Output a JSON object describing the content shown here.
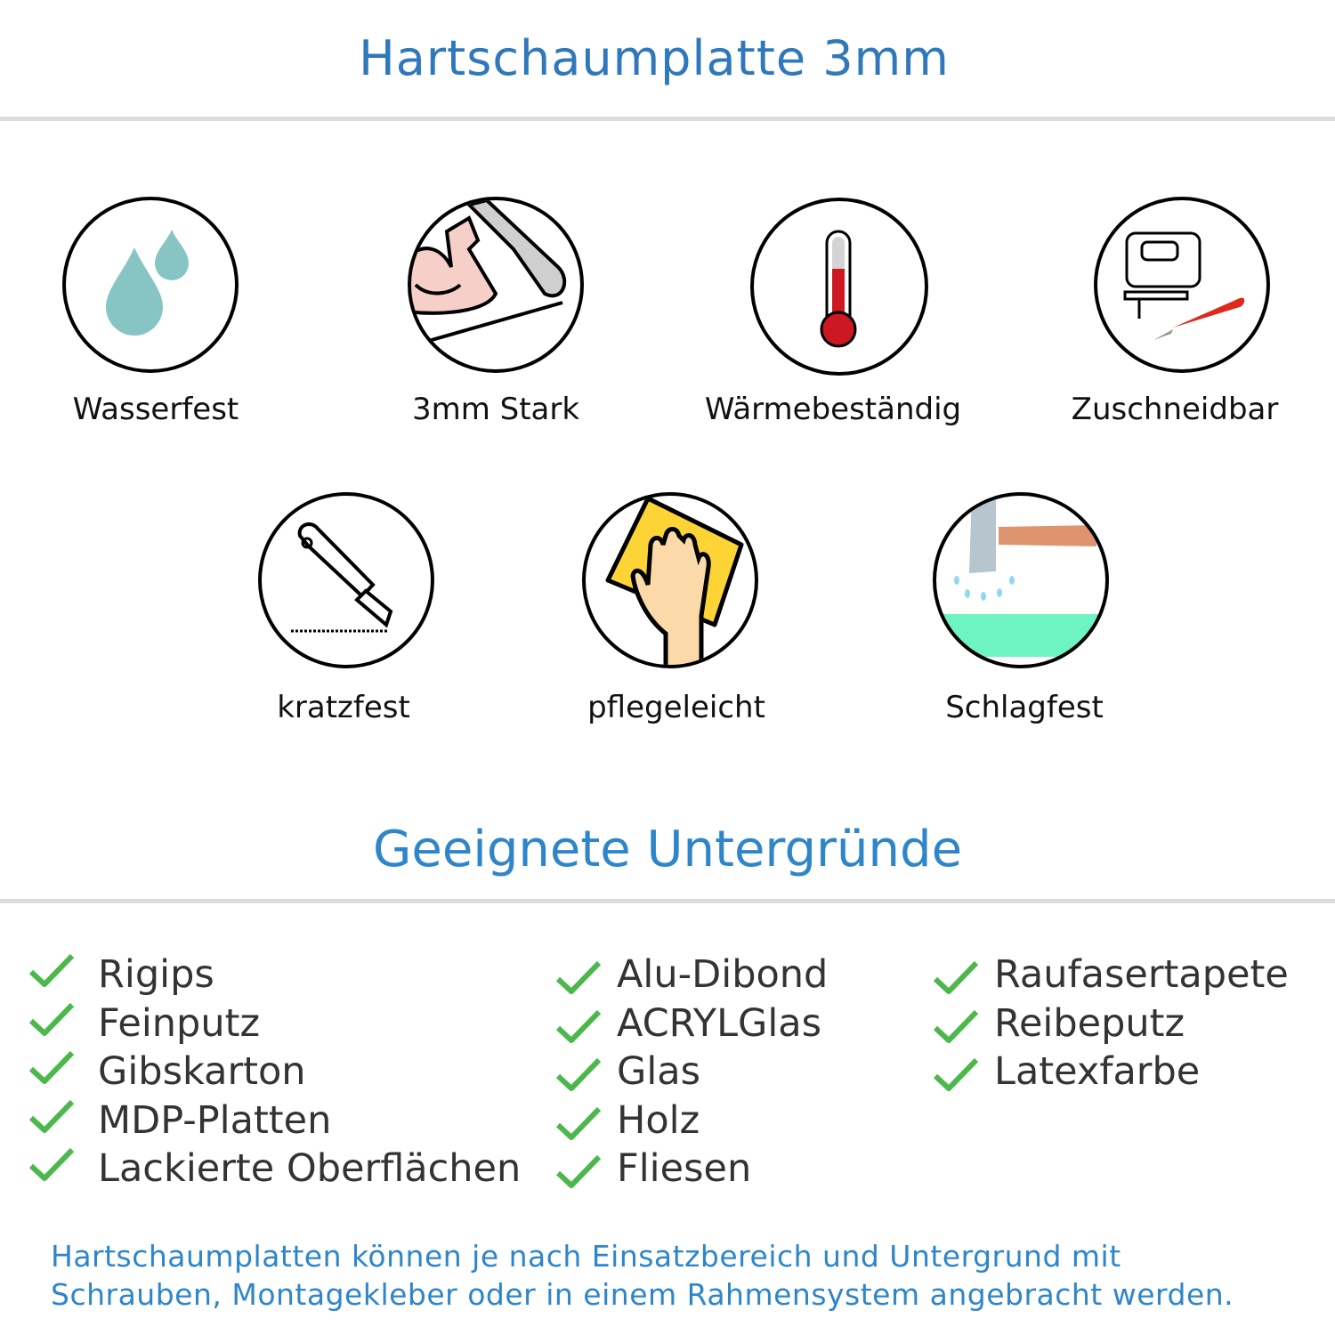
{
  "header": {
    "title": "Hartschaumplatte 3mm"
  },
  "features": [
    {
      "label": "Wasserfest",
      "icon": "water-drops-icon"
    },
    {
      "label": "3mm Stark",
      "icon": "strong-arm-icon"
    },
    {
      "label": "Wärmebeständig",
      "icon": "thermometer-icon"
    },
    {
      "label": "Zuschneidbar",
      "icon": "jigsaw-knife-icon"
    },
    {
      "label": "kratzfest",
      "icon": "cutter-knife-icon"
    },
    {
      "label": "pflegeleicht",
      "icon": "hand-sponge-icon"
    },
    {
      "label": "Schlagfest",
      "icon": "hammer-icon"
    }
  ],
  "surfaces": {
    "title": "Geeignete Untergründe",
    "columns": [
      [
        "Rigips",
        "Feinputz",
        "Gibskarton",
        "MDP-Platten",
        "Lackierte Oberflächen"
      ],
      [
        "Alu-Dibond",
        "ACRYLGlas",
        "Glas",
        "Holz",
        "Fliesen"
      ],
      [
        "Raufasertapete",
        "Reibeputz",
        "Latexfarbe"
      ]
    ],
    "check_color": "#4cb84c"
  },
  "footer": {
    "line1": "Hartschaumplatten können je nach Einsatzbereich und Untergrund mit",
    "line2": "Schrauben, Montagekleber oder in einem Rahmensystem angebracht werden."
  },
  "colors": {
    "title": "#2f78bb",
    "accent": "#2e86c9"
  }
}
